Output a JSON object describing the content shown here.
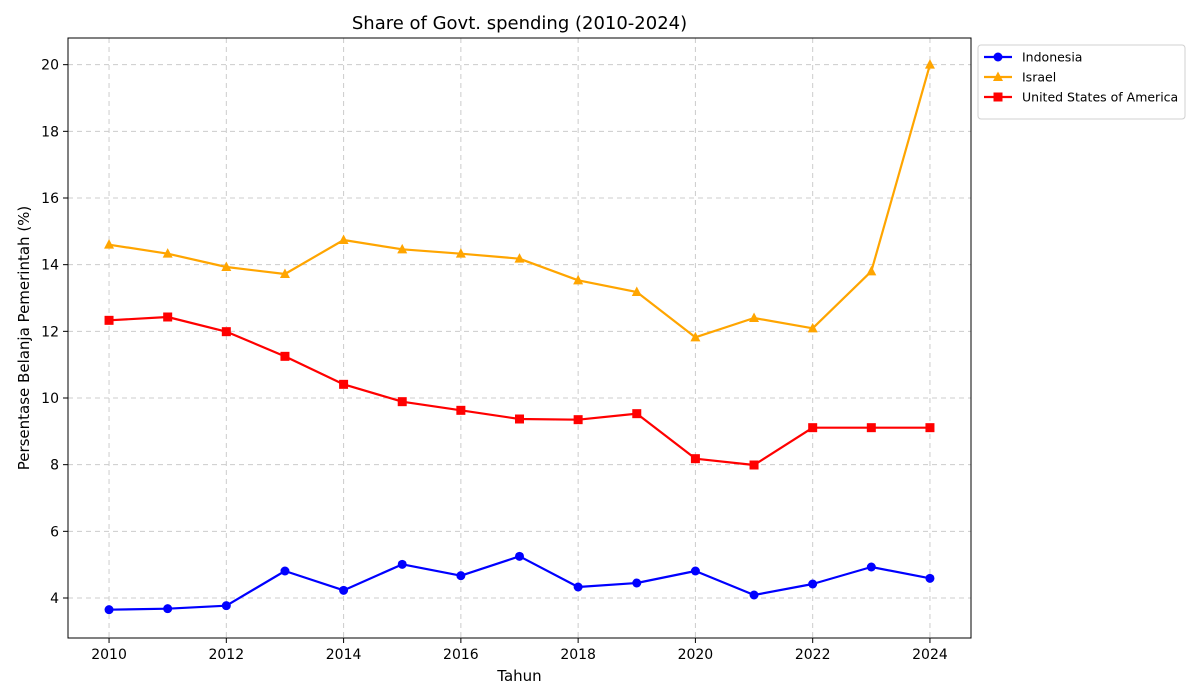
{
  "chart_data": {
    "type": "line",
    "title": "Share of Govt. spending (2010-2024)",
    "xlabel": "Tahun",
    "ylabel": "Persentase Belanja Pemerintah (%)",
    "x": [
      2010,
      2011,
      2012,
      2013,
      2014,
      2015,
      2016,
      2017,
      2018,
      2019,
      2020,
      2021,
      2022,
      2023,
      2024
    ],
    "xticks": [
      2010,
      2012,
      2014,
      2016,
      2018,
      2020,
      2022,
      2024
    ],
    "yticks": [
      4,
      6,
      8,
      10,
      12,
      14,
      16,
      18,
      20
    ],
    "xlim": [
      2009.3,
      2024.7
    ],
    "ylim": [
      2.8,
      20.8
    ],
    "grid": true,
    "legend_position": "outside-top-right",
    "series": [
      {
        "name": "Indonesia",
        "color": "#0000ff",
        "marker": "circle",
        "values": [
          3.65,
          3.68,
          3.77,
          4.81,
          4.23,
          5.01,
          4.67,
          5.25,
          4.33,
          4.45,
          4.81,
          4.09,
          4.42,
          4.93,
          4.59
        ]
      },
      {
        "name": "Israel",
        "color": "#ffa500",
        "marker": "triangle",
        "values": [
          14.6,
          14.33,
          13.93,
          13.72,
          14.74,
          14.46,
          14.33,
          14.18,
          13.53,
          13.18,
          11.82,
          12.4,
          12.09,
          13.8,
          20.0
        ]
      },
      {
        "name": "United States of America",
        "color": "#ff0000",
        "marker": "square",
        "values": [
          12.33,
          12.43,
          11.99,
          11.25,
          10.41,
          9.89,
          9.63,
          9.37,
          9.35,
          9.53,
          8.18,
          7.99,
          9.11,
          9.11,
          9.11
        ]
      }
    ]
  }
}
